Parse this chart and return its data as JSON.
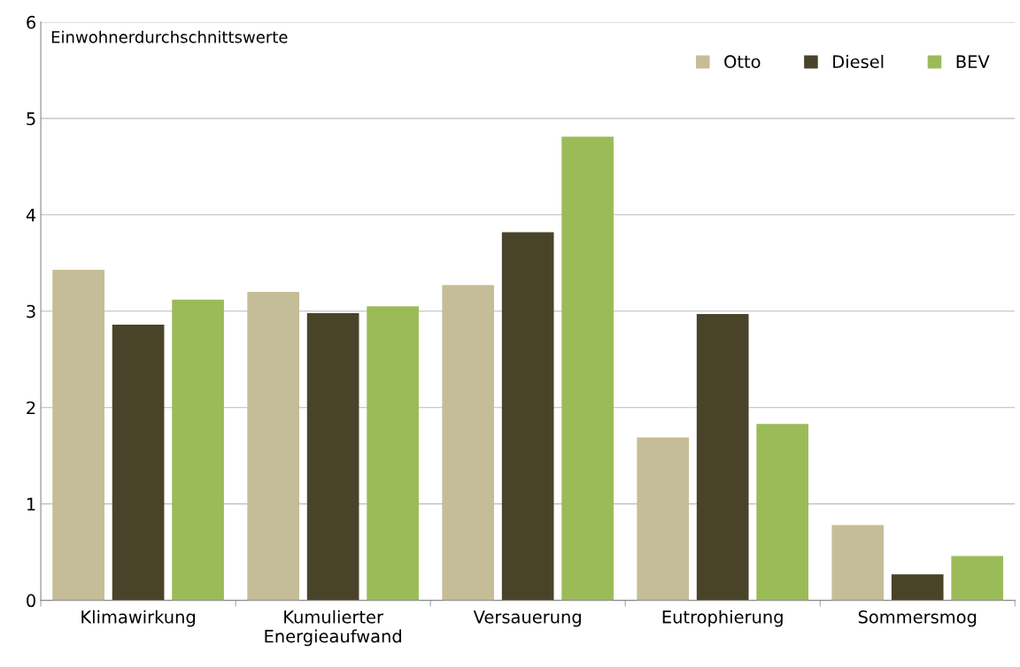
{
  "chart_data": {
    "type": "bar",
    "categories": [
      "Klimawirkung",
      "Kumulierter\nEnergieaufwand",
      "Versauerung",
      "Eutrophierung",
      "Sommersmog"
    ],
    "series": [
      {
        "name": "Otto",
        "color": "#c4bd97",
        "values": [
          3.43,
          3.2,
          3.27,
          1.69,
          0.78
        ]
      },
      {
        "name": "Diesel",
        "color": "#494429",
        "values": [
          2.86,
          2.98,
          3.82,
          2.97,
          0.27
        ]
      },
      {
        "name": "BEV",
        "color": "#9bbb59",
        "values": [
          3.12,
          3.05,
          4.81,
          1.83,
          0.46
        ]
      }
    ],
    "annotations": [
      "Einwohnerdurchschnittswerte"
    ],
    "ylim": [
      0,
      6
    ],
    "yticks": [
      0,
      1,
      2,
      3,
      4,
      5,
      6
    ],
    "grid": "y",
    "legend": "top right"
  }
}
